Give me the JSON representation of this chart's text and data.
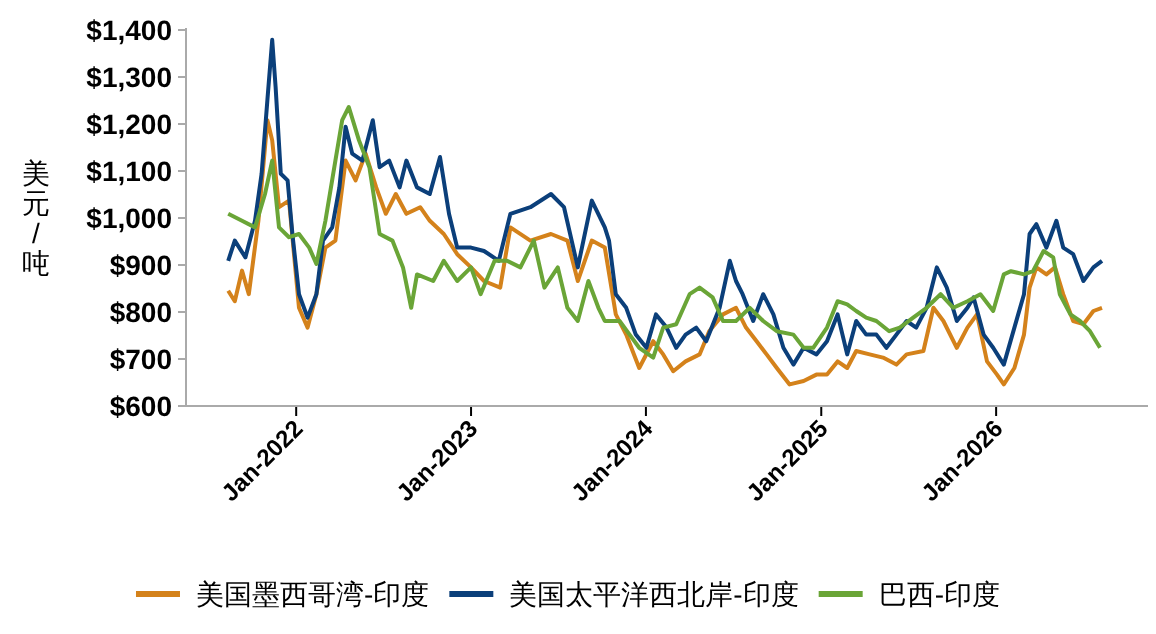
{
  "chart_data": {
    "type": "line",
    "ylabel": "美元/吨",
    "xlim": [
      "2021-05-16",
      "2026-11-14"
    ],
    "xticks": [
      {
        "value": "2022-01-01",
        "label": "Jan-2022"
      },
      {
        "value": "2023-01-01",
        "label": "Jan-2023"
      },
      {
        "value": "2024-01-01",
        "label": "Jan-2024"
      },
      {
        "value": "2025-01-01",
        "label": "Jan-2025"
      },
      {
        "value": "2026-01-01",
        "label": "Jan-2026"
      }
    ],
    "ylim": [
      600,
      1400
    ],
    "yticks": [
      {
        "value": 600,
        "label": "$600"
      },
      {
        "value": 700,
        "label": "$700"
      },
      {
        "value": 800,
        "label": "$800"
      },
      {
        "value": 900,
        "label": "$900"
      },
      {
        "value": 1000,
        "label": "$1,000"
      },
      {
        "value": 1100,
        "label": "$1,100"
      },
      {
        "value": 1200,
        "label": "$1,200"
      },
      {
        "value": 1300,
        "label": "$1,300"
      },
      {
        "value": 1400,
        "label": "$1,400"
      }
    ],
    "legend": "bottom",
    "series": [
      {
        "name": "美国墨西哥湾-印度",
        "color": "#d4821b",
        "x": [
          "2021-08-12",
          "2021-08-26",
          "2021-09-10",
          "2021-09-24",
          "2021-10-14",
          "2021-11-02",
          "2021-11-12",
          "2021-11-26",
          "2021-12-17",
          "2022-01-07",
          "2022-01-25",
          "2022-02-12",
          "2022-03-03",
          "2022-03-24",
          "2022-04-14",
          "2022-05-05",
          "2022-05-26",
          "2022-06-17",
          "2022-07-07",
          "2022-07-28",
          "2022-08-19",
          "2022-09-17",
          "2022-10-07",
          "2022-11-05",
          "2022-12-03",
          "2023-01-01",
          "2023-01-28",
          "2023-03-03",
          "2023-03-24",
          "2023-05-05",
          "2023-06-17",
          "2023-07-21",
          "2023-08-12",
          "2023-09-10",
          "2023-10-07",
          "2023-10-30",
          "2023-11-21",
          "2023-12-18",
          "2024-01-16",
          "2024-02-06",
          "2024-02-27",
          "2024-03-24",
          "2024-04-22",
          "2024-05-12",
          "2024-06-10",
          "2024-07-07",
          "2024-07-28",
          "2024-08-19",
          "2024-09-09",
          "2024-09-30",
          "2024-10-27",
          "2024-11-25",
          "2024-12-22",
          "2025-01-13",
          "2025-02-04",
          "2025-02-24",
          "2025-03-15",
          "2025-04-12",
          "2025-05-10",
          "2025-06-07",
          "2025-06-28",
          "2025-08-02",
          "2025-08-23",
          "2025-09-13",
          "2025-10-11",
          "2025-11-02",
          "2025-11-22",
          "2025-12-13",
          "2026-01-03",
          "2026-01-17",
          "2026-02-08",
          "2026-02-28",
          "2026-03-12",
          "2026-03-26",
          "2026-04-16",
          "2026-05-04",
          "2026-05-21",
          "2026-06-11",
          "2026-07-02",
          "2026-07-23",
          "2026-08-10"
        ],
        "values": [
          845,
          823,
          888,
          838,
          994,
          1208,
          1165,
          1023,
          1037,
          809,
          767,
          838,
          937,
          952,
          1122,
          1080,
          1137,
          1065,
          1009,
          1051,
          1009,
          1023,
          994,
          966,
          923,
          895,
          866,
          852,
          980,
          952,
          966,
          952,
          866,
          952,
          937,
          795,
          752,
          681,
          738,
          710,
          674,
          695,
          710,
          759,
          795,
          809,
          767,
          738,
          710,
          681,
          646,
          653,
          667,
          667,
          695,
          681,
          717,
          710,
          703,
          688,
          710,
          717,
          809,
          781,
          724,
          767,
          795,
          695,
          667,
          646,
          681,
          752,
          852,
          895,
          880,
          895,
          838,
          781,
          774,
          802,
          809
        ]
      },
      {
        "name": "美国太平洋西北岸-印度",
        "color": "#0b3f7a",
        "x": [
          "2021-08-12",
          "2021-08-26",
          "2021-09-17",
          "2021-10-07",
          "2021-10-21",
          "2021-11-02",
          "2021-11-12",
          "2021-11-19",
          "2021-11-30",
          "2021-12-14",
          "2021-12-24",
          "2022-01-07",
          "2022-01-25",
          "2022-02-12",
          "2022-02-26",
          "2022-03-17",
          "2022-04-01",
          "2022-04-14",
          "2022-04-28",
          "2022-05-19",
          "2022-06-10",
          "2022-06-24",
          "2022-07-14",
          "2022-08-05",
          "2022-08-19",
          "2022-09-10",
          "2022-10-07",
          "2022-10-28",
          "2022-11-16",
          "2022-12-03",
          "2023-01-01",
          "2023-01-28",
          "2023-02-28",
          "2023-03-24",
          "2023-05-05",
          "2023-06-17",
          "2023-07-14",
          "2023-08-12",
          "2023-09-10",
          "2023-10-07",
          "2023-10-16",
          "2023-10-30",
          "2023-11-21",
          "2023-12-11",
          "2024-01-02",
          "2024-01-22",
          "2024-02-13",
          "2024-03-04",
          "2024-03-24",
          "2024-04-15",
          "2024-05-06",
          "2024-06-03",
          "2024-06-24",
          "2024-07-07",
          "2024-07-21",
          "2024-08-12",
          "2024-09-02",
          "2024-09-23",
          "2024-10-14",
          "2024-11-04",
          "2024-11-25",
          "2024-12-22",
          "2025-01-13",
          "2025-02-04",
          "2025-02-24",
          "2025-03-15",
          "2025-04-05",
          "2025-04-26",
          "2025-05-17",
          "2025-06-07",
          "2025-06-28",
          "2025-07-18",
          "2025-08-09",
          "2025-08-30",
          "2025-09-20",
          "2025-10-11",
          "2025-11-02",
          "2025-11-15",
          "2025-12-06",
          "2025-12-26",
          "2026-01-17",
          "2026-02-08",
          "2026-02-28",
          "2026-03-12",
          "2026-03-26",
          "2026-04-16",
          "2026-05-07",
          "2026-05-21",
          "2026-06-11",
          "2026-07-02",
          "2026-07-23",
          "2026-08-10"
        ],
        "values": [
          909,
          952,
          916,
          994,
          1094,
          1251,
          1379,
          1279,
          1094,
          1080,
          966,
          838,
          788,
          838,
          952,
          980,
          1065,
          1194,
          1137,
          1122,
          1208,
          1108,
          1122,
          1065,
          1122,
          1065,
          1051,
          1130,
          1009,
          937,
          937,
          930,
          909,
          1009,
          1023,
          1051,
          1023,
          895,
          1037,
          980,
          952,
          838,
          809,
          752,
          724,
          795,
          767,
          724,
          752,
          767,
          738,
          809,
          909,
          866,
          838,
          781,
          838,
          795,
          724,
          688,
          724,
          710,
          738,
          795,
          710,
          781,
          752,
          752,
          724,
          752,
          781,
          767,
          809,
          895,
          852,
          781,
          809,
          831,
          752,
          724,
          688,
          767,
          838,
          966,
          987,
          937,
          994,
          937,
          923,
          866,
          895,
          909
        ]
      },
      {
        "name": "巴西-印度",
        "color": "#6aa537",
        "x": [
          "2021-08-12",
          "2021-09-10",
          "2021-10-07",
          "2021-10-28",
          "2021-11-12",
          "2021-11-26",
          "2021-12-17",
          "2022-01-07",
          "2022-01-28",
          "2022-02-12",
          "2022-03-03",
          "2022-03-24",
          "2022-04-07",
          "2022-04-21",
          "2022-05-12",
          "2022-06-03",
          "2022-06-24",
          "2022-07-21",
          "2022-08-12",
          "2022-08-29",
          "2022-09-10",
          "2022-10-14",
          "2022-11-05",
          "2022-12-03",
          "2023-01-01",
          "2023-01-21",
          "2023-02-19",
          "2023-03-17",
          "2023-04-14",
          "2023-05-12",
          "2023-06-03",
          "2023-07-01",
          "2023-07-21",
          "2023-08-12",
          "2023-09-03",
          "2023-09-24",
          "2023-10-07",
          "2023-10-16",
          "2023-11-07",
          "2023-11-28",
          "2023-12-18",
          "2024-01-16",
          "2024-02-06",
          "2024-03-04",
          "2024-04-01",
          "2024-04-22",
          "2024-05-19",
          "2024-06-10",
          "2024-07-07",
          "2024-08-05",
          "2024-09-02",
          "2024-09-30",
          "2024-11-04",
          "2024-11-25",
          "2024-12-15",
          "2025-01-13",
          "2025-02-04",
          "2025-02-24",
          "2025-03-15",
          "2025-04-05",
          "2025-04-26",
          "2025-05-23",
          "2025-06-14",
          "2025-07-12",
          "2025-08-09",
          "2025-09-07",
          "2025-10-04",
          "2025-11-02",
          "2025-11-29",
          "2025-12-26",
          "2026-01-17",
          "2026-02-01",
          "2026-02-28",
          "2026-03-19",
          "2026-04-10",
          "2026-04-30",
          "2026-05-14",
          "2026-06-05",
          "2026-06-25",
          "2026-07-16",
          "2026-08-06"
        ],
        "values": [
          1009,
          994,
          980,
          1051,
          1122,
          980,
          959,
          966,
          937,
          902,
          994,
          1122,
          1208,
          1236,
          1165,
          1108,
          966,
          952,
          895,
          809,
          880,
          866,
          909,
          866,
          895,
          838,
          909,
          909,
          895,
          952,
          852,
          895,
          809,
          781,
          866,
          809,
          781,
          781,
          781,
          752,
          724,
          703,
          767,
          774,
          838,
          852,
          831,
          781,
          781,
          809,
          781,
          759,
          752,
          724,
          724,
          767,
          823,
          816,
          802,
          788,
          781,
          759,
          767,
          788,
          809,
          838,
          809,
          823,
          838,
          802,
          880,
          887,
          880,
          887,
          930,
          916,
          838,
          795,
          781,
          759,
          724
        ]
      }
    ]
  }
}
